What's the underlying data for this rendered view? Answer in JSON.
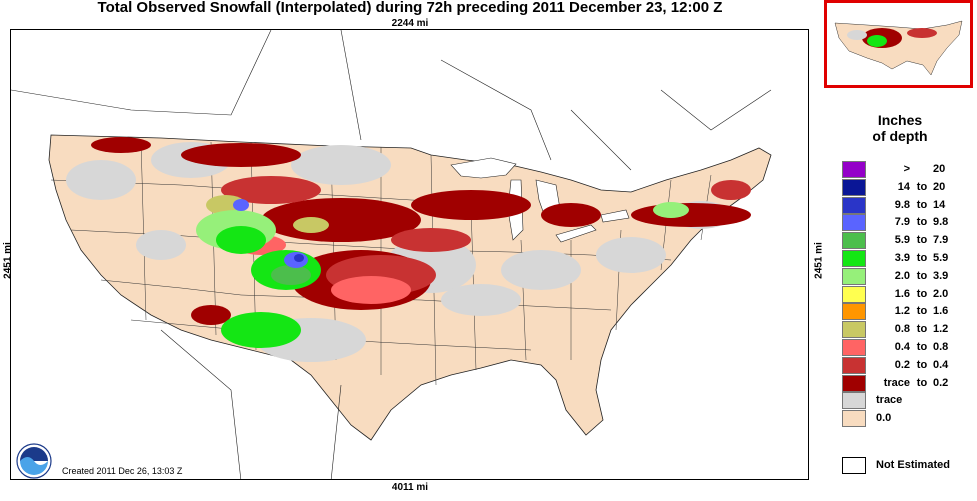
{
  "header": {
    "title": "Total Observed Snowfall (Interpolated) during 72h preceding 2011 December 23, 12:00 Z"
  },
  "map": {
    "width_label": "4011 mi",
    "top_label": "2244 mi",
    "height_label": "2451 mi",
    "created": "Created 2011 Dec 26, 13:03 Z"
  },
  "legend": {
    "title_line1": "Inches",
    "title_line2": "of depth",
    "not_estimated": "Not Estimated",
    "items": [
      {
        "lo": ">",
        "to": "",
        "hi": "20",
        "color": "#9400c8"
      },
      {
        "lo": "14",
        "to": "to",
        "hi": "20",
        "color": "#0a1696"
      },
      {
        "lo": "9.8",
        "to": "to",
        "hi": "14",
        "color": "#2a35c8"
      },
      {
        "lo": "7.9",
        "to": "to",
        "hi": "9.8",
        "color": "#5a64ff"
      },
      {
        "lo": "5.9",
        "to": "to",
        "hi": "7.9",
        "color": "#4cbe4c"
      },
      {
        "lo": "3.9",
        "to": "to",
        "hi": "5.9",
        "color": "#14e614"
      },
      {
        "lo": "2.0",
        "to": "to",
        "hi": "3.9",
        "color": "#96f07a"
      },
      {
        "lo": "1.6",
        "to": "to",
        "hi": "2.0",
        "color": "#ffff50"
      },
      {
        "lo": "1.2",
        "to": "to",
        "hi": "1.6",
        "color": "#ff9600"
      },
      {
        "lo": "0.8",
        "to": "to",
        "hi": "1.2",
        "color": "#c8c864"
      },
      {
        "lo": "0.4",
        "to": "to",
        "hi": "0.8",
        "color": "#ff6464"
      },
      {
        "lo": "0.2",
        "to": "to",
        "hi": "0.4",
        "color": "#c83232"
      },
      {
        "lo": "trace",
        "to": "to",
        "hi": "0.2",
        "color": "#a00000"
      },
      {
        "lo": "trace",
        "to": "",
        "hi": "",
        "color": "#d7d7d7",
        "single": true
      },
      {
        "lo": "0.0",
        "to": "",
        "hi": "",
        "color": "#f8dcc0",
        "single": true
      }
    ]
  },
  "colors": {
    "land": "#f8dcc0",
    "trace": "#d7d7d7",
    "inset_border": "#e00000"
  }
}
